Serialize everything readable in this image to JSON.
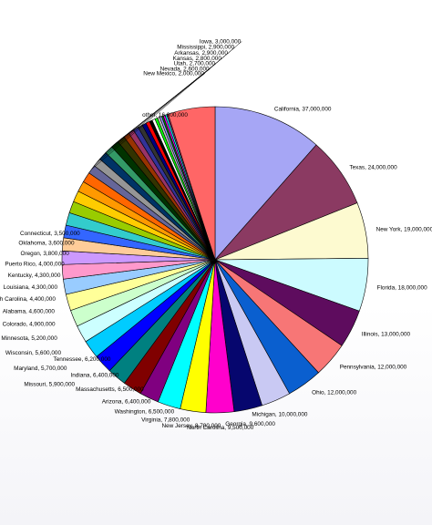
{
  "chart_data": {
    "type": "pie",
    "title": "",
    "slices": [
      {
        "label": "California, 37,000,000",
        "value": 37000000,
        "color": "#a6a6f5"
      },
      {
        "label": "Texas, 24,000,000",
        "value": 24000000,
        "color": "#8b3a62"
      },
      {
        "label": "New York, 19,000,000",
        "value": 19000000,
        "color": "#fdfad0"
      },
      {
        "label": "Florida, 18,000,000",
        "value": 18000000,
        "color": "#ccfbff"
      },
      {
        "label": "Illinois, 13,000,000",
        "value": 13000000,
        "color": "#5e0c5e"
      },
      {
        "label": "Pennsylvania, 12,000,000",
        "value": 12000000,
        "color": "#f77676"
      },
      {
        "label": "Ohio, 12,000,000",
        "value": 12000000,
        "color": "#0a5fcf"
      },
      {
        "label": "Michigan, 10,000,000",
        "value": 10000000,
        "color": "#c9c9f3"
      },
      {
        "label": "Georgia, 9,600,000",
        "value": 9600000,
        "color": "#06066e"
      },
      {
        "label": "North Carolina, 9,500,000",
        "value": 9500000,
        "color": "#ff00cc"
      },
      {
        "label": "New Jersey, 8,700,000",
        "value": 8700000,
        "color": "#ffff00"
      },
      {
        "label": "Virginia, 7,800,000",
        "value": 7800000,
        "color": "#00ffff"
      },
      {
        "label": "Washington, 6,500,000",
        "value": 6500000,
        "color": "#800080"
      },
      {
        "label": "Arizona, 6,400,000",
        "value": 6400000,
        "color": "#800000"
      },
      {
        "label": "Massachusetts, 6,500,000",
        "value": 6500000,
        "color": "#008080"
      },
      {
        "label": "Indiana, 6,400,000",
        "value": 6400000,
        "color": "#0000ff"
      },
      {
        "label": "Tennessee, 6,200,000",
        "value": 6200000,
        "color": "#00ccff"
      },
      {
        "label": "Missouri, 5,900,000",
        "value": 5900000,
        "color": "#ccffff"
      },
      {
        "label": "Maryland, 5,700,000",
        "value": 5700000,
        "color": "#ccffcc"
      },
      {
        "label": "Wisconsin, 5,600,000",
        "value": 5600000,
        "color": "#ffff99"
      },
      {
        "label": "Minnesota, 5,200,000",
        "value": 5200000,
        "color": "#99ccff"
      },
      {
        "label": "Colorado, 4,900,000",
        "value": 4900000,
        "color": "#ff99cc"
      },
      {
        "label": "Alabama, 4,600,000",
        "value": 4600000,
        "color": "#cc99ff"
      },
      {
        "label": "South Carolina, 4,400,000",
        "value": 4400000,
        "color": "#ffcc99"
      },
      {
        "label": "Louisiana, 4,300,000",
        "value": 4300000,
        "color": "#3366ff"
      },
      {
        "label": "Kentucky, 4,300,000",
        "value": 4300000,
        "color": "#33cccc"
      },
      {
        "label": "Puerto Rico, 4,000,000",
        "value": 4000000,
        "color": "#99cc00"
      },
      {
        "label": "Oregon, 3,800,000",
        "value": 3800000,
        "color": "#ffcc00"
      },
      {
        "label": "Oklahoma, 3,600,000",
        "value": 3600000,
        "color": "#ff9900"
      },
      {
        "label": "Connecticut, 3,500,000",
        "value": 3500000,
        "color": "#ff6600"
      },
      {
        "label": "Iowa, 3,000,000",
        "value": 3000000,
        "color": "#666699"
      },
      {
        "label": "Mississippi, 2,900,000",
        "value": 2900000,
        "color": "#969696"
      },
      {
        "label": "Arkansas, 2,900,000",
        "value": 2900000,
        "color": "#003366"
      },
      {
        "label": "Kansas, 2,800,000",
        "value": 2800000,
        "color": "#339966"
      },
      {
        "label": "Utah, 2,700,000",
        "value": 2700000,
        "color": "#003300"
      },
      {
        "label": "Nevada, 2,600,000",
        "value": 2600000,
        "color": "#333300"
      },
      {
        "label": "New Mexico, 2,000,000",
        "value": 2000000,
        "color": "#993300"
      },
      {
        "label": "",
        "value": 1900000,
        "color": "#993366"
      },
      {
        "label": "",
        "value": 1800000,
        "color": "#333399"
      },
      {
        "label": "",
        "value": 1600000,
        "color": "#333333"
      },
      {
        "label": "",
        "value": 1400000,
        "color": "#000080"
      },
      {
        "label": "",
        "value": 1300000,
        "color": "#ff0000"
      },
      {
        "label": "",
        "value": 1000000,
        "color": "#000000"
      },
      {
        "label": "",
        "value": 1000000,
        "color": "#ffffff"
      },
      {
        "label": "",
        "value": 900000,
        "color": "#00ff00"
      },
      {
        "label": "",
        "value": 800000,
        "color": "#c0c0c0"
      },
      {
        "label": "",
        "value": 700000,
        "color": "#9999ff"
      },
      {
        "label": "",
        "value": 600000,
        "color": "#008000"
      },
      {
        "label": "",
        "value": 600000,
        "color": "#ff00ff"
      },
      {
        "label": "",
        "value": 600000,
        "color": "#00ffff"
      },
      {
        "label": "",
        "value": 500000,
        "color": "#993366"
      },
      {
        "label": "other, 16,000,000",
        "value": 16000000,
        "color": "#ff6666"
      }
    ],
    "start_angle_deg": 0,
    "direction": "clockwise",
    "legend": "none"
  }
}
